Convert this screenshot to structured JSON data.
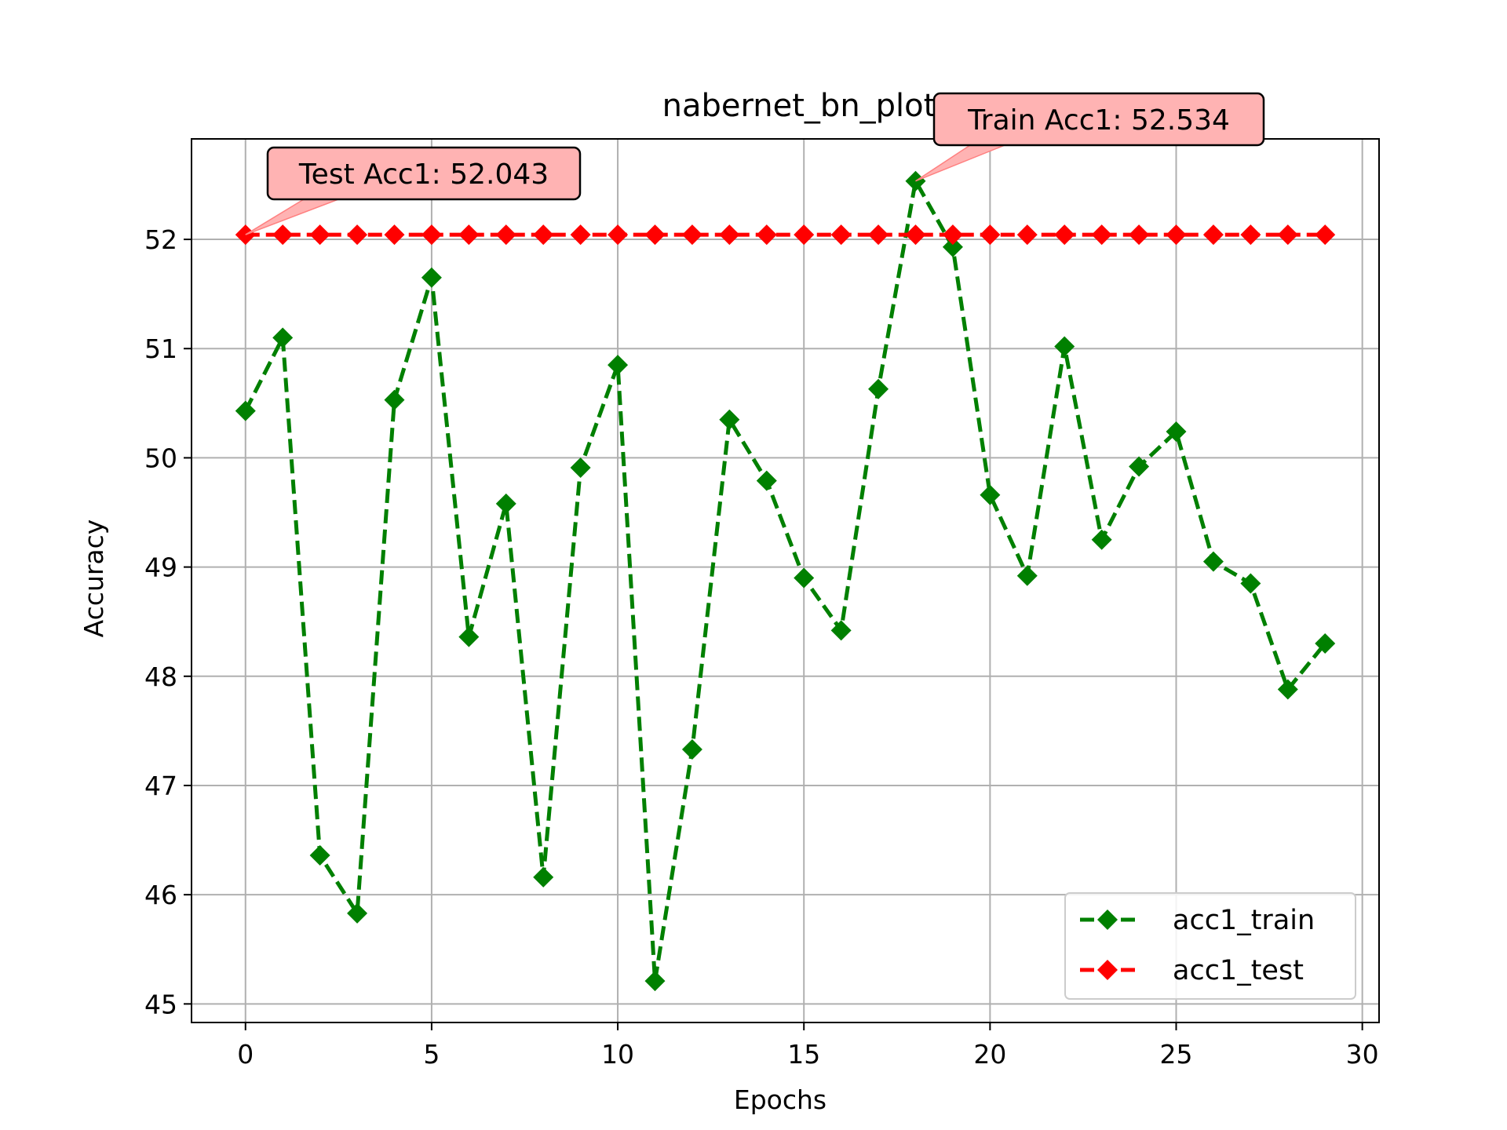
{
  "chart_data": {
    "type": "line",
    "title": "nabernet_bn_plot",
    "xlabel": "Epochs",
    "ylabel": "Accuracy",
    "xlim": [
      -1.45,
      30.45
    ],
    "ylim": [
      44.83,
      52.92
    ],
    "xticks": [
      0,
      5,
      10,
      15,
      20,
      25,
      30
    ],
    "yticks": [
      45,
      46,
      47,
      48,
      49,
      50,
      51,
      52
    ],
    "grid": true,
    "legend_position": "lower right",
    "x": [
      0,
      1,
      2,
      3,
      4,
      5,
      6,
      7,
      8,
      9,
      10,
      11,
      12,
      13,
      14,
      15,
      16,
      17,
      18,
      19,
      20,
      21,
      22,
      23,
      24,
      25,
      26,
      27,
      28,
      29
    ],
    "series": [
      {
        "name": "acc1_train",
        "color": "#008000",
        "linestyle": "dashed",
        "marker": "diamond",
        "values": [
          50.43,
          51.1,
          46.36,
          45.83,
          50.53,
          51.65,
          48.36,
          49.58,
          46.16,
          49.91,
          50.85,
          45.21,
          47.33,
          50.35,
          49.79,
          48.9,
          48.42,
          50.63,
          52.534,
          51.93,
          49.66,
          48.92,
          51.02,
          49.25,
          49.92,
          50.24,
          49.05,
          48.85,
          47.88,
          48.3
        ]
      },
      {
        "name": "acc1_test",
        "color": "#ff0000",
        "linestyle": "dashed",
        "marker": "diamond",
        "values": [
          52.043,
          52.043,
          52.043,
          52.043,
          52.043,
          52.043,
          52.043,
          52.043,
          52.043,
          52.043,
          52.043,
          52.043,
          52.043,
          52.043,
          52.043,
          52.043,
          52.043,
          52.043,
          52.043,
          52.043,
          52.043,
          52.043,
          52.043,
          52.043,
          52.043,
          52.043,
          52.043,
          52.043,
          52.043,
          52.043
        ]
      }
    ],
    "annotations": [
      {
        "text": "Test Acc1: 52.043",
        "x": 0,
        "y": 52.043,
        "series": "acc1_test"
      },
      {
        "text": "Train Acc1: 52.534",
        "x": 18,
        "y": 52.534,
        "series": "acc1_train"
      }
    ],
    "annotation_box_color": "#ffb3b3"
  }
}
